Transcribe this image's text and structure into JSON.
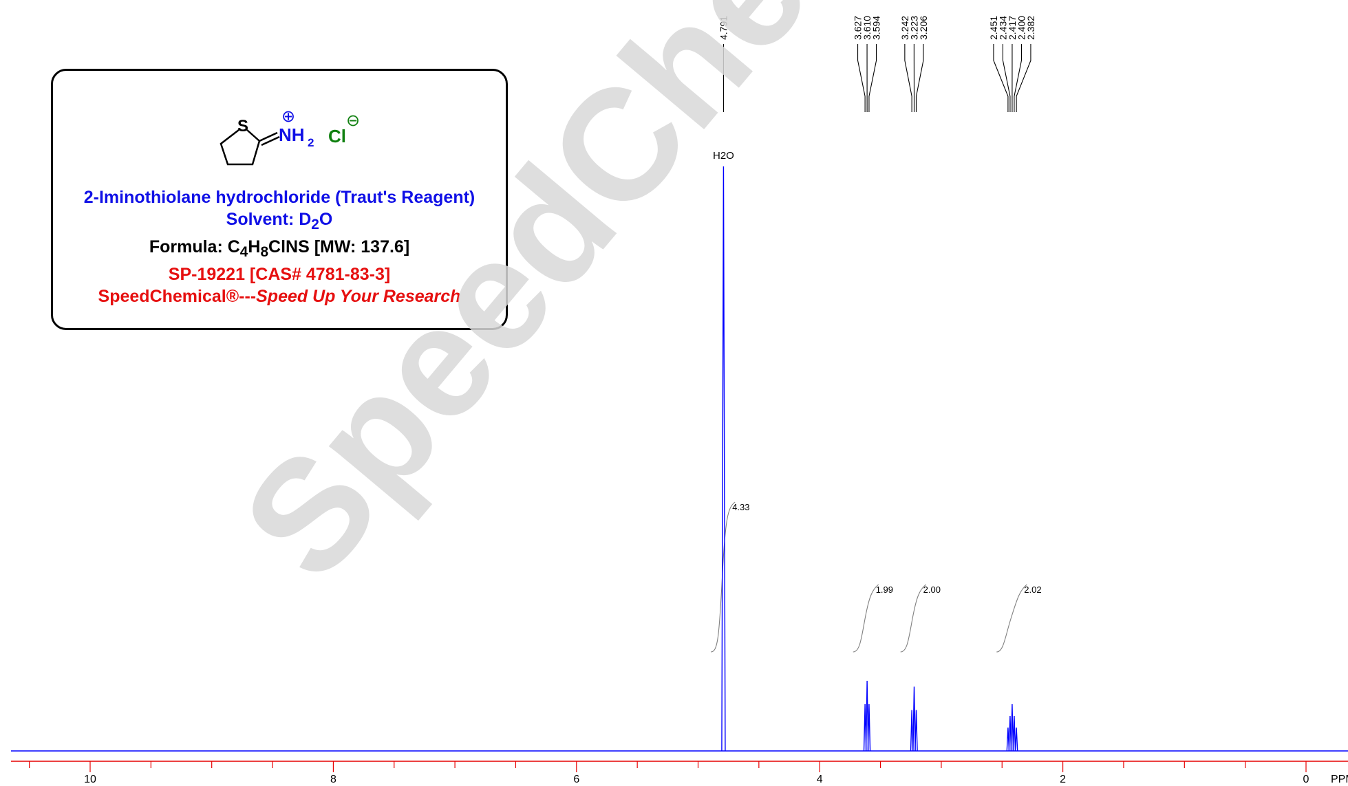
{
  "compound": {
    "name_line": "2-Iminothiolane hydrochloride (Traut's Reagent)",
    "solvent_label": "Solvent: D",
    "solvent_sub": "2",
    "solvent_end": "O",
    "formula_label": "Formula: C",
    "formula_sub1": "4",
    "formula_mid": "H",
    "formula_sub2": "8",
    "formula_end": "ClNS [MW: 137.6]",
    "sp_line": "SP-19221 [CAS# 4781-83-3]",
    "brand": "SpeedChemical®---",
    "tagline": "Speed Up Your Research",
    "struct_S": "S",
    "struct_NH": "NH",
    "struct_sub": "2",
    "struct_Cl": "Cl",
    "struct_plus": "⊕",
    "struct_minus": "⊖"
  },
  "watermark": "SpeedChemical",
  "colors": {
    "spectrum": "#0000ff",
    "axis": "#e60000",
    "integral": "#808080",
    "blue_text": "#1010e6",
    "red_text": "#e61010"
  },
  "chart_data": {
    "type": "line",
    "xlabel": "PPM",
    "xlim": [
      10.5,
      0
    ],
    "x_axis_direction": "reversed",
    "major_ticks": [
      "10",
      "8",
      "6",
      "4",
      "2",
      "0"
    ],
    "minor_tick_step": 0.5,
    "peak_labels": [
      "4.791",
      "3.627",
      "3.610",
      "3.594",
      "3.242",
      "3.223",
      "3.206",
      "2.451",
      "2.434",
      "2.417",
      "2.400",
      "2.382"
    ],
    "solvent_peak": {
      "label": "H2O",
      "ppm": 4.791
    },
    "peaks": [
      {
        "ppm": 4.791,
        "intensity": 1.0
      },
      {
        "ppm": 3.627,
        "intensity": 0.08
      },
      {
        "ppm": 3.61,
        "intensity": 0.12
      },
      {
        "ppm": 3.594,
        "intensity": 0.08
      },
      {
        "ppm": 3.242,
        "intensity": 0.07
      },
      {
        "ppm": 3.223,
        "intensity": 0.11
      },
      {
        "ppm": 3.206,
        "intensity": 0.07
      },
      {
        "ppm": 2.451,
        "intensity": 0.04
      },
      {
        "ppm": 2.434,
        "intensity": 0.06
      },
      {
        "ppm": 2.417,
        "intensity": 0.08
      },
      {
        "ppm": 2.4,
        "intensity": 0.06
      },
      {
        "ppm": 2.382,
        "intensity": 0.04
      }
    ],
    "integrals": [
      {
        "label": "4.33",
        "from_ppm": 4.85,
        "to_ppm": 4.73
      },
      {
        "label": "1.99",
        "from_ppm": 3.68,
        "to_ppm": 3.55
      },
      {
        "label": "2.00",
        "from_ppm": 3.29,
        "to_ppm": 3.16
      },
      {
        "label": "2.02",
        "from_ppm": 2.5,
        "to_ppm": 2.33
      }
    ]
  }
}
